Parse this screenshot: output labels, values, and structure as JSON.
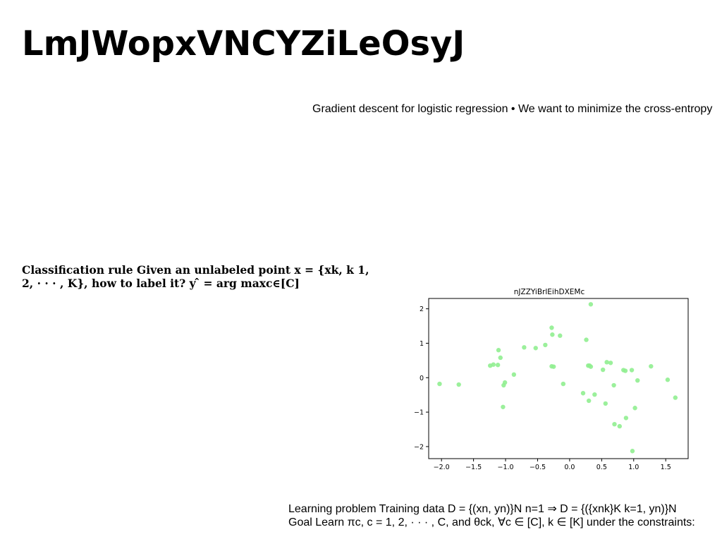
{
  "title": "LmJWopxVNCYZiLeOsyJ",
  "top_note": "Gradient descent for logistic regression • We want to minimize the cross-entropy",
  "rule_text": "Classification rule Given an unlabeled point x = {xk, k 1, 2, · · · , K}, how to label it? y ̂ = arg maxc∈[C]",
  "bottom_lines": [
    "Learning problem Training data D = {(xn, yn)}N n=1 ⇒ D = {({xnk}K k=1, yn)}N",
    "Goal Learn πc, c = 1, 2, · · · , C, and θck, ∀c ∈ [C], k ∈ [K] under the constraints:"
  ],
  "chart_data": {
    "type": "scatter",
    "title": "nJZZYiBrlEihDXEMc",
    "xlabel": "",
    "ylabel": "",
    "xlim": [
      -2.2,
      1.85
    ],
    "ylim": [
      -2.35,
      2.3
    ],
    "xticks": [
      -2.0,
      -1.5,
      -1.0,
      -0.5,
      0.0,
      0.5,
      1.0,
      1.5
    ],
    "xtick_labels": [
      "−2.0",
      "−1.5",
      "−1.0",
      "−0.5",
      "0.0",
      "0.5",
      "1.0",
      "1.5"
    ],
    "yticks": [
      2,
      1,
      0,
      -1,
      -2
    ],
    "ytick_labels": [
      "2",
      "1",
      "0",
      "−1",
      "−2"
    ],
    "grid": false,
    "marker_color": "#90ee90",
    "series": [
      {
        "x": [
          -2.03,
          -1.73,
          -1.24,
          -1.19,
          -1.11,
          -1.12,
          -1.08,
          -1.04,
          -1.03,
          -1.01,
          -0.87,
          -0.71,
          -0.53,
          -0.38,
          -0.28,
          -0.27,
          -0.28,
          -0.25,
          -0.15,
          -0.1,
          0.21,
          0.26,
          0.29,
          0.3,
          0.31,
          0.33,
          0.33,
          0.39,
          0.52,
          0.56,
          0.58,
          0.64,
          0.69,
          0.7,
          0.78,
          0.84,
          0.87,
          0.88,
          0.97,
          0.98,
          1.02,
          1.06,
          1.27,
          1.53,
          1.65
        ],
        "y": [
          -0.18,
          -0.2,
          0.35,
          0.38,
          0.8,
          0.37,
          0.58,
          -0.85,
          -0.22,
          -0.14,
          0.09,
          0.88,
          0.86,
          0.95,
          1.45,
          1.25,
          0.33,
          0.32,
          1.22,
          -0.18,
          -0.45,
          1.1,
          0.35,
          -0.67,
          0.35,
          0.32,
          2.13,
          -0.49,
          0.23,
          -0.75,
          0.45,
          0.43,
          -0.22,
          -1.35,
          -1.41,
          0.22,
          0.2,
          -1.17,
          0.22,
          -2.13,
          -0.88,
          -0.08,
          0.33,
          -0.06,
          -0.58
        ]
      }
    ]
  }
}
